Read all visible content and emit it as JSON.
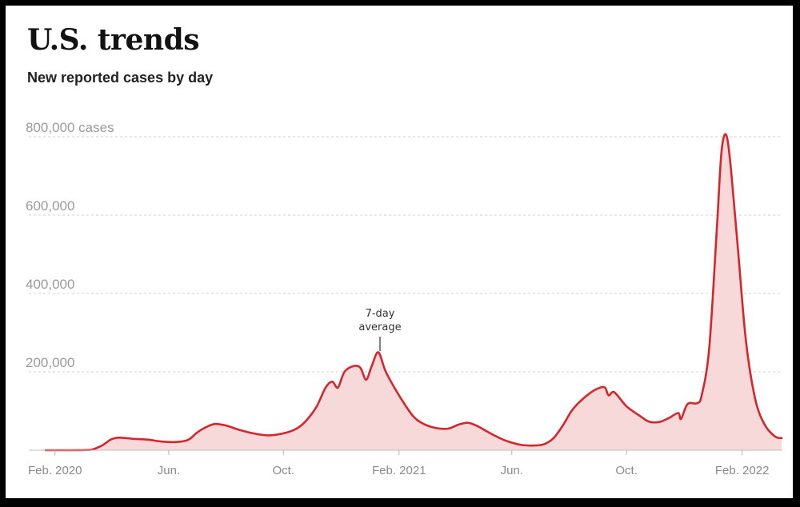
{
  "header": {
    "title": "U.S. trends",
    "subtitle": "New reported cases by day"
  },
  "annotation": {
    "line1": "7-day",
    "line2": "average"
  },
  "colors": {
    "line": "#d6262b",
    "fill": "#f8d9da",
    "grid": "#d0d0d0",
    "tick_text": "#9a9a9a",
    "frame": "#000000"
  },
  "chart_data": {
    "type": "area",
    "title": "U.S. trends",
    "subtitle": "New reported cases by day",
    "series": [
      {
        "name": "7-day average",
        "points": [
          [
            "2020-01-22",
            0
          ],
          [
            "2020-02-20",
            0
          ],
          [
            "2020-03-10",
            1000
          ],
          [
            "2020-03-22",
            12000
          ],
          [
            "2020-04-01",
            28000
          ],
          [
            "2020-04-10",
            32000
          ],
          [
            "2020-04-25",
            29000
          ],
          [
            "2020-05-10",
            27000
          ],
          [
            "2020-05-25",
            22000
          ],
          [
            "2020-06-10",
            21000
          ],
          [
            "2020-06-22",
            27000
          ],
          [
            "2020-07-01",
            45000
          ],
          [
            "2020-07-10",
            58000
          ],
          [
            "2020-07-20",
            67000
          ],
          [
            "2020-08-01",
            63000
          ],
          [
            "2020-08-15",
            52000
          ],
          [
            "2020-09-01",
            42000
          ],
          [
            "2020-09-15",
            38000
          ],
          [
            "2020-10-01",
            43000
          ],
          [
            "2020-10-15",
            55000
          ],
          [
            "2020-10-25",
            75000
          ],
          [
            "2020-11-05",
            110000
          ],
          [
            "2020-11-15",
            160000
          ],
          [
            "2020-11-22",
            175000
          ],
          [
            "2020-11-28",
            160000
          ],
          [
            "2020-12-05",
            200000
          ],
          [
            "2020-12-15",
            215000
          ],
          [
            "2020-12-22",
            210000
          ],
          [
            "2020-12-28",
            180000
          ],
          [
            "2021-01-03",
            215000
          ],
          [
            "2021-01-10",
            250000
          ],
          [
            "2021-01-18",
            200000
          ],
          [
            "2021-02-01",
            140000
          ],
          [
            "2021-02-15",
            90000
          ],
          [
            "2021-02-25",
            70000
          ],
          [
            "2021-03-10",
            58000
          ],
          [
            "2021-03-25",
            55000
          ],
          [
            "2021-04-05",
            65000
          ],
          [
            "2021-04-15",
            70000
          ],
          [
            "2021-04-25",
            62000
          ],
          [
            "2021-05-10",
            42000
          ],
          [
            "2021-05-25",
            25000
          ],
          [
            "2021-06-10",
            14000
          ],
          [
            "2021-06-25",
            12000
          ],
          [
            "2021-07-05",
            15000
          ],
          [
            "2021-07-15",
            30000
          ],
          [
            "2021-07-25",
            62000
          ],
          [
            "2021-08-05",
            105000
          ],
          [
            "2021-08-20",
            140000
          ],
          [
            "2021-09-01",
            158000
          ],
          [
            "2021-09-08",
            160000
          ],
          [
            "2021-09-12",
            140000
          ],
          [
            "2021-09-18",
            148000
          ],
          [
            "2021-10-01",
            112000
          ],
          [
            "2021-10-15",
            88000
          ],
          [
            "2021-10-25",
            73000
          ],
          [
            "2021-11-05",
            72000
          ],
          [
            "2021-11-15",
            82000
          ],
          [
            "2021-11-25",
            95000
          ],
          [
            "2021-11-28",
            80000
          ],
          [
            "2021-12-05",
            118000
          ],
          [
            "2021-12-15",
            120000
          ],
          [
            "2021-12-20",
            140000
          ],
          [
            "2021-12-28",
            260000
          ],
          [
            "2022-01-05",
            560000
          ],
          [
            "2022-01-10",
            760000
          ],
          [
            "2022-01-15",
            805000
          ],
          [
            "2022-01-20",
            720000
          ],
          [
            "2022-01-28",
            500000
          ],
          [
            "2022-02-05",
            280000
          ],
          [
            "2022-02-15",
            130000
          ],
          [
            "2022-02-25",
            65000
          ],
          [
            "2022-03-08",
            35000
          ],
          [
            "2022-03-15",
            31000
          ]
        ]
      }
    ],
    "x_ticks": [
      {
        "date": "2020-02-01",
        "label": "Feb. 2020"
      },
      {
        "date": "2020-06-01",
        "label": "Jun."
      },
      {
        "date": "2020-10-01",
        "label": "Oct."
      },
      {
        "date": "2021-02-01",
        "label": "Feb. 2021"
      },
      {
        "date": "2021-06-01",
        "label": "Jun."
      },
      {
        "date": "2021-10-01",
        "label": "Oct."
      },
      {
        "date": "2022-02-01",
        "label": "Feb. 2022"
      }
    ],
    "y_ticks": [
      {
        "value": 200000,
        "label": "200,000"
      },
      {
        "value": 400000,
        "label": "400,000"
      },
      {
        "value": 600000,
        "label": "600,000"
      },
      {
        "value": 800000,
        "label": "800,000 cases"
      }
    ],
    "xlim": [
      "2020-01-22",
      "2022-03-15"
    ],
    "ylim": [
      0,
      800000
    ],
    "grid": true,
    "legend": "none"
  }
}
